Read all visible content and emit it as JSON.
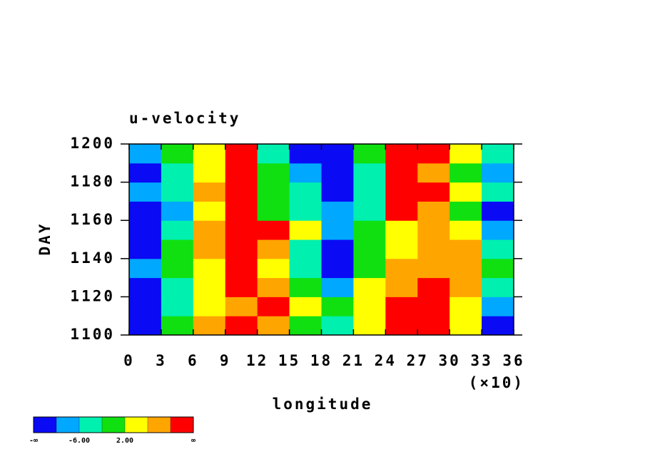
{
  "chart_data": {
    "type": "heatmap",
    "title": "u-velocity",
    "xlabel": "longitude",
    "ylabel": "DAY",
    "x_multiplier": "(×10)",
    "xlim": [
      0,
      36
    ],
    "xticks": [
      0,
      3,
      6,
      9,
      12,
      15,
      18,
      21,
      24,
      27,
      30,
      33,
      36
    ],
    "ylim": [
      1100,
      1200
    ],
    "yticks": [
      1100,
      1120,
      1140,
      1160,
      1180,
      1200
    ],
    "x_edges": [
      0,
      3,
      6,
      9,
      12,
      15,
      18,
      21,
      24,
      27,
      30,
      33,
      36
    ],
    "y_edges": [
      1100,
      1110,
      1120,
      1130,
      1140,
      1150,
      1160,
      1170,
      1180,
      1190,
      1200
    ],
    "values": [
      [
        -12,
        -2,
        6,
        10,
        8,
        0,
        -3,
        4,
        11,
        11,
        5,
        -12
      ],
      [
        -11,
        -4,
        4,
        9,
        10,
        2,
        -2,
        3,
        10,
        12,
        4,
        -8
      ],
      [
        -12,
        -6,
        2,
        11,
        6,
        -2,
        -8,
        2,
        9,
        12,
        6,
        -3
      ],
      [
        -8,
        -2,
        4,
        11,
        4,
        -6,
        -11,
        0,
        6,
        9,
        8,
        -2
      ],
      [
        -12,
        -2,
        8,
        12,
        9,
        -4,
        -11,
        0,
        4,
        6,
        8,
        -6
      ],
      [
        -12,
        -4,
        6,
        12,
        11,
        2,
        -8,
        -2,
        2,
        6,
        4,
        -10
      ],
      [
        -12,
        -8,
        4,
        11,
        0,
        -4,
        -9,
        -4,
        10,
        6,
        -2,
        -12
      ],
      [
        -8,
        -4,
        6,
        11,
        1,
        -4,
        -12,
        -6,
        10,
        12,
        2,
        -6
      ],
      [
        -12,
        -6,
        2,
        10,
        -2,
        -8,
        -12,
        -4,
        11,
        6,
        0,
        -8
      ],
      [
        -10,
        -2,
        4,
        11,
        -4,
        -11,
        -12,
        -2,
        12,
        11,
        4,
        -6
      ]
    ],
    "colorbar": {
      "levels": [
        -10,
        -6,
        -2,
        2,
        6,
        10
      ],
      "colors": [
        "#0a0af5",
        "#00a8ff",
        "#00f0b0",
        "#10e010",
        "#ffff00",
        "#ffa500",
        "#ff0000"
      ],
      "ticks": [
        {
          "value": -6,
          "label": "-6.00"
        },
        {
          "value": 2,
          "label": "2.00"
        }
      ],
      "low_label": "-∞",
      "high_label": "∞"
    }
  }
}
